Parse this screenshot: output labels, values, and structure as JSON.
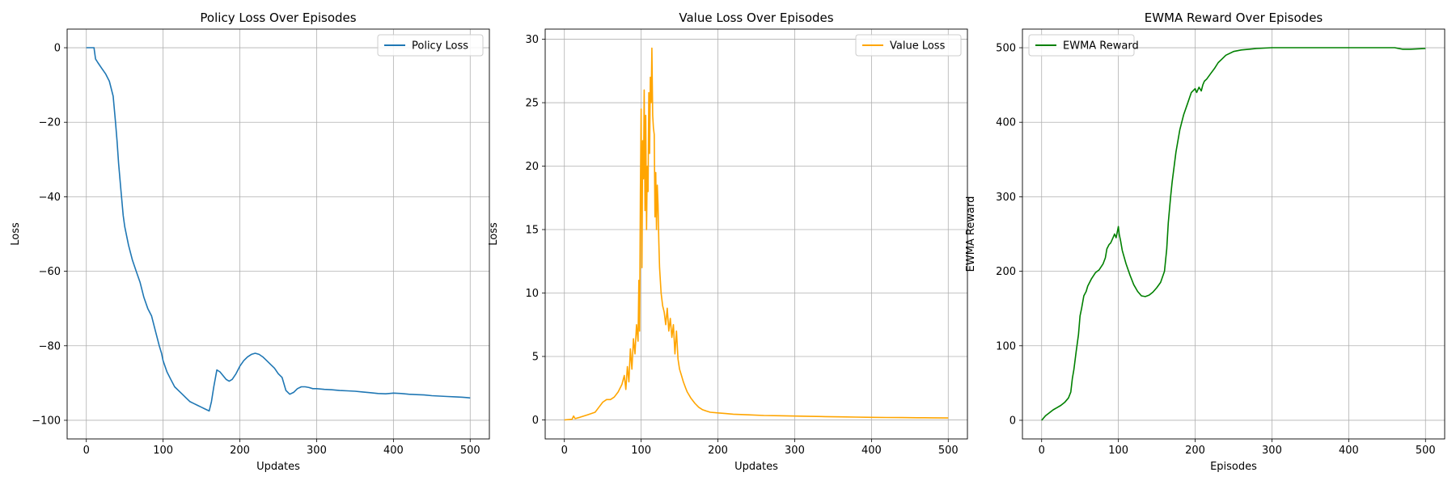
{
  "chart_data": [
    {
      "type": "line",
      "title": "Policy Loss Over Episodes",
      "xlabel": "Updates",
      "ylabel": "Loss",
      "xlim": [
        -25,
        525
      ],
      "ylim": [
        -105,
        5
      ],
      "xticks": [
        0,
        100,
        200,
        300,
        400,
        500
      ],
      "yticks": [
        -100,
        -80,
        -60,
        -40,
        -20,
        0
      ],
      "grid": true,
      "legend_position": "upper right",
      "series": [
        {
          "name": "Policy Loss",
          "color": "#1f77b4",
          "x": [
            0,
            5,
            10,
            12,
            15,
            20,
            25,
            30,
            35,
            38,
            40,
            42,
            45,
            48,
            50,
            55,
            60,
            65,
            70,
            75,
            80,
            85,
            90,
            95,
            98,
            100,
            105,
            110,
            115,
            120,
            125,
            130,
            135,
            140,
            145,
            150,
            155,
            160,
            163,
            166,
            170,
            174,
            178,
            182,
            186,
            190,
            195,
            200,
            205,
            210,
            215,
            220,
            225,
            230,
            235,
            240,
            245,
            250,
            255,
            260,
            265,
            270,
            275,
            280,
            285,
            290,
            295,
            300,
            310,
            320,
            330,
            340,
            350,
            360,
            370,
            380,
            390,
            400,
            410,
            420,
            430,
            440,
            450,
            460,
            470,
            480,
            490,
            495,
            500
          ],
          "y": [
            0,
            0,
            0,
            -3,
            -4,
            -5.5,
            -7,
            -9,
            -13,
            -20,
            -25,
            -31,
            -38,
            -45,
            -48,
            -53,
            -57,
            -60,
            -63,
            -67,
            -70,
            -72,
            -76,
            -80,
            -82,
            -84,
            -87,
            -89,
            -91,
            -92,
            -93,
            -94,
            -95,
            -95.5,
            -96,
            -96.5,
            -97,
            -97.5,
            -95,
            -91,
            -86.5,
            -87,
            -88,
            -89,
            -89.5,
            -89,
            -87.5,
            -85.5,
            -84,
            -83,
            -82.3,
            -82,
            -82.3,
            -83,
            -84,
            -85,
            -86,
            -87.5,
            -88.5,
            -92,
            -93,
            -92.5,
            -91.5,
            -91,
            -91,
            -91.2,
            -91.5,
            -91.5,
            -91.7,
            -91.8,
            -92,
            -92.1,
            -92.2,
            -92.4,
            -92.6,
            -92.8,
            -92.9,
            -92.7,
            -92.8,
            -93,
            -93.1,
            -93.2,
            -93.4,
            -93.5,
            -93.6,
            -93.7,
            -93.8,
            -93.9,
            -94
          ]
        }
      ]
    },
    {
      "type": "line",
      "title": "Value Loss Over Episodes",
      "xlabel": "Updates",
      "ylabel": "Loss",
      "xlim": [
        -25,
        525
      ],
      "ylim": [
        -1.5,
        30.8
      ],
      "xticks": [
        0,
        100,
        200,
        300,
        400,
        500
      ],
      "yticks": [
        0,
        5,
        10,
        15,
        20,
        25,
        30
      ],
      "grid": true,
      "legend_position": "upper right",
      "series": [
        {
          "name": "Value Loss",
          "color": "#ffa500",
          "x": [
            0,
            10,
            12,
            14,
            20,
            30,
            40,
            45,
            50,
            55,
            60,
            65,
            70,
            75,
            78,
            80,
            82,
            84,
            86,
            88,
            90,
            92,
            94,
            96,
            97,
            98,
            99,
            100,
            101,
            102,
            103,
            104,
            105,
            106,
            107,
            108,
            109,
            110,
            111,
            112,
            113,
            114,
            115,
            116,
            117,
            118,
            119,
            120,
            121,
            122,
            123,
            124,
            126,
            128,
            130,
            132,
            134,
            136,
            138,
            140,
            142,
            144,
            146,
            148,
            150,
            152,
            155,
            158,
            160,
            165,
            170,
            175,
            180,
            185,
            190,
            200,
            210,
            220,
            240,
            260,
            280,
            300,
            320,
            340,
            360,
            380,
            400,
            420,
            440,
            460,
            480,
            500
          ],
          "y": [
            0,
            0.05,
            0.3,
            0.1,
            0.2,
            0.4,
            0.6,
            1.0,
            1.4,
            1.6,
            1.6,
            1.8,
            2.2,
            2.8,
            3.5,
            2.4,
            4.2,
            3.0,
            5.6,
            4.0,
            6.4,
            5.2,
            7.5,
            6.2,
            11,
            7,
            18,
            24.5,
            12,
            22,
            19,
            26,
            16.5,
            24,
            15,
            20,
            18,
            25.8,
            21,
            27,
            25,
            29.3,
            24,
            23,
            22.5,
            16,
            19.5,
            15,
            18.5,
            17,
            14,
            12,
            10,
            9,
            8.5,
            7.5,
            8.8,
            7,
            8,
            6.5,
            7.5,
            5.2,
            7,
            4.8,
            4,
            3.6,
            3.0,
            2.5,
            2.2,
            1.7,
            1.3,
            1.0,
            0.8,
            0.7,
            0.6,
            0.55,
            0.5,
            0.45,
            0.4,
            0.35,
            0.33,
            0.3,
            0.28,
            0.26,
            0.24,
            0.22,
            0.2,
            0.19,
            0.18,
            0.17,
            0.16,
            0.15
          ]
        }
      ]
    },
    {
      "type": "line",
      "title": "EWMA Reward Over Episodes",
      "xlabel": "Episodes",
      "ylabel": "EWMA Reward",
      "xlim": [
        -25,
        525
      ],
      "ylim": [
        -25,
        525
      ],
      "xticks": [
        0,
        100,
        200,
        300,
        400,
        500
      ],
      "yticks": [
        0,
        100,
        200,
        300,
        400,
        500
      ],
      "grid": true,
      "legend_position": "upper left",
      "series": [
        {
          "name": "EWMA Reward",
          "color": "#008000",
          "x": [
            0,
            5,
            10,
            15,
            20,
            25,
            30,
            35,
            38,
            40,
            42,
            45,
            48,
            50,
            52,
            55,
            58,
            60,
            65,
            70,
            75,
            80,
            83,
            85,
            88,
            90,
            93,
            95,
            97,
            99,
            100,
            101,
            103,
            105,
            110,
            115,
            120,
            125,
            130,
            135,
            140,
            145,
            150,
            155,
            160,
            163,
            165,
            168,
            170,
            175,
            180,
            185,
            190,
            195,
            200,
            202,
            205,
            208,
            210,
            212,
            215,
            220,
            225,
            230,
            235,
            240,
            250,
            260,
            270,
            280,
            290,
            300,
            320,
            340,
            360,
            380,
            400,
            420,
            440,
            460,
            465,
            470,
            480,
            500
          ],
          "y": [
            0,
            6,
            10,
            14,
            17,
            20,
            24,
            30,
            38,
            56,
            68,
            92,
            115,
            140,
            150,
            167,
            173,
            180,
            190,
            198,
            202,
            210,
            218,
            230,
            236,
            238,
            245,
            250,
            245,
            255,
            260,
            250,
            240,
            228,
            210,
            195,
            182,
            173,
            167,
            166,
            168,
            172,
            178,
            185,
            200,
            230,
            265,
            300,
            320,
            360,
            390,
            410,
            425,
            440,
            445,
            440,
            447,
            442,
            450,
            455,
            458,
            465,
            472,
            480,
            485,
            490,
            495,
            497,
            498,
            499,
            499.5,
            500,
            500,
            500,
            500,
            500,
            500,
            500,
            500,
            500,
            499,
            498,
            498,
            499
          ]
        }
      ]
    }
  ]
}
